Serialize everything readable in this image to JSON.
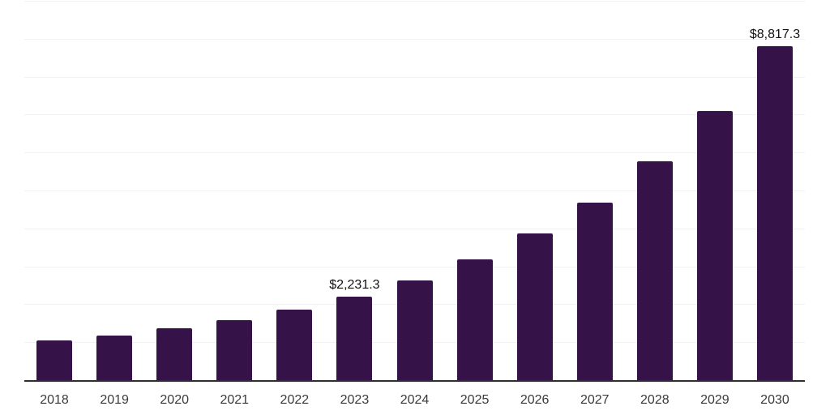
{
  "chart": {
    "background_color": "#ffffff"
  },
  "chart_data": {
    "type": "bar",
    "title": "",
    "xlabel": "",
    "ylabel": "",
    "categories": [
      "2018",
      "2019",
      "2020",
      "2021",
      "2022",
      "2023",
      "2024",
      "2025",
      "2026",
      "2027",
      "2028",
      "2029",
      "2030"
    ],
    "values": [
      1070,
      1200,
      1390,
      1610,
      1890,
      2231.3,
      2660,
      3200,
      3880,
      4710,
      5790,
      7120,
      8817.3
    ],
    "data_labels": [
      "",
      "",
      "",
      "",
      "",
      "$2,231.3",
      "",
      "",
      "",
      "",
      "",
      "",
      "$8,817.3"
    ],
    "ylim": [
      0,
      10000
    ],
    "gridline_step": 1000,
    "grid": "horizontal",
    "legend": "none",
    "y_axis_labels_visible": false,
    "bar_color": "#351349",
    "gridline_color": "#f2f2f2",
    "axis_line_color": "#2f2f2f",
    "tick_label_color": "#3a3a3a",
    "data_label_color": "#121212"
  }
}
